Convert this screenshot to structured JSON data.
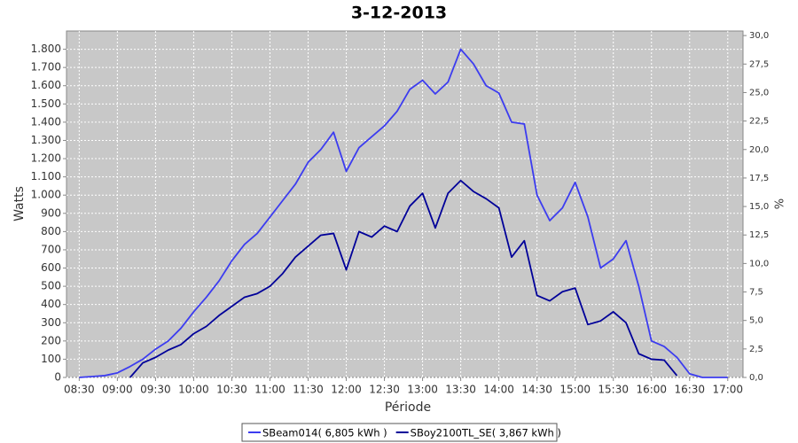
{
  "chart_data": {
    "type": "line",
    "title": "3-12-2013",
    "x_label": "Période",
    "y_label": "Watts",
    "y2_label": "%",
    "x": [
      510,
      520,
      530,
      540,
      550,
      560,
      570,
      580,
      590,
      600,
      610,
      620,
      630,
      640,
      650,
      660,
      670,
      680,
      690,
      700,
      710,
      720,
      730,
      740,
      750,
      760,
      770,
      780,
      790,
      800,
      810,
      820,
      830,
      840,
      850,
      860,
      870,
      880,
      890,
      900,
      910,
      920,
      930,
      940,
      950,
      960,
      970,
      980,
      990,
      1000,
      1010,
      1020
    ],
    "series": [
      {
        "name": "SBeam014( 6,805 kWh )",
        "color": "#3c3cf0",
        "values": [
          0,
          5,
          10,
          25,
          60,
          100,
          155,
          200,
          270,
          360,
          440,
          530,
          640,
          730,
          790,
          880,
          970,
          1060,
          1180,
          1250,
          1345,
          1130,
          1260,
          1320,
          1380,
          1460,
          1580,
          1630,
          1555,
          1620,
          1800,
          1720,
          1600,
          1560,
          1400,
          1390,
          1000,
          860,
          930,
          1070,
          880,
          600,
          650,
          750,
          500,
          200,
          170,
          110,
          20,
          0,
          0,
          0
        ]
      },
      {
        "name": "SBoy2100TL_SE( 3,867 kWh )",
        "color": "#000099",
        "values": [
          null,
          null,
          null,
          null,
          0,
          80,
          110,
          150,
          180,
          240,
          280,
          340,
          390,
          440,
          460,
          500,
          570,
          660,
          720,
          780,
          790,
          590,
          800,
          770,
          830,
          800,
          940,
          1010,
          820,
          1010,
          1080,
          1020,
          980,
          930,
          660,
          750,
          450,
          420,
          470,
          490,
          290,
          310,
          360,
          300,
          130,
          100,
          95,
          10,
          null,
          null,
          null,
          null
        ]
      }
    ],
    "xlim": [
      500,
      1032
    ],
    "xticks": [
      {
        "value": 510,
        "label": "08:30"
      },
      {
        "value": 540,
        "label": "09:00"
      },
      {
        "value": 570,
        "label": "09:30"
      },
      {
        "value": 600,
        "label": "10:00"
      },
      {
        "value": 630,
        "label": "10:30"
      },
      {
        "value": 660,
        "label": "11:00"
      },
      {
        "value": 690,
        "label": "11:30"
      },
      {
        "value": 720,
        "label": "12:00"
      },
      {
        "value": 750,
        "label": "12:30"
      },
      {
        "value": 780,
        "label": "13:00"
      },
      {
        "value": 810,
        "label": "13:30"
      },
      {
        "value": 840,
        "label": "14:00"
      },
      {
        "value": 870,
        "label": "14:30"
      },
      {
        "value": 900,
        "label": "15:00"
      },
      {
        "value": 930,
        "label": "15:30"
      },
      {
        "value": 960,
        "label": "16:00"
      },
      {
        "value": 990,
        "label": "16:30"
      },
      {
        "value": 1020,
        "label": "17:00"
      }
    ],
    "ylim": [
      0,
      1900
    ],
    "yticks": [
      0,
      100,
      200,
      300,
      400,
      500,
      600,
      700,
      800,
      900,
      {
        "value": 1000,
        "label": "1.000"
      },
      {
        "value": 1100,
        "label": "1.100"
      },
      {
        "value": 1200,
        "label": "1.200"
      },
      {
        "value": 1300,
        "label": "1.300"
      },
      {
        "value": 1400,
        "label": "1.400"
      },
      {
        "value": 1500,
        "label": "1.500"
      },
      {
        "value": 1600,
        "label": "1.600"
      },
      {
        "value": 1700,
        "label": "1.700"
      },
      {
        "value": 1800,
        "label": "1.800"
      }
    ],
    "y2lim": [
      0,
      30.4
    ],
    "y2ticks": [
      {
        "value": 0,
        "label": "0,0"
      },
      {
        "value": 2.5,
        "label": "2,5"
      },
      {
        "value": 5,
        "label": "5,0"
      },
      {
        "value": 7.5,
        "label": "7,5"
      },
      {
        "value": 10,
        "label": "10,0"
      },
      {
        "value": 12.5,
        "label": "12,5"
      },
      {
        "value": 15,
        "label": "15,0"
      },
      {
        "value": 17.5,
        "label": "17,5"
      },
      {
        "value": 20,
        "label": "20,0"
      },
      {
        "value": 22.5,
        "label": "22,5"
      },
      {
        "value": 25,
        "label": "25,0"
      },
      {
        "value": 27.5,
        "label": "27,5"
      },
      {
        "value": 30,
        "label": "30,0"
      }
    ],
    "grid": true,
    "background": "#c8c8c8",
    "legend": "bottom"
  }
}
